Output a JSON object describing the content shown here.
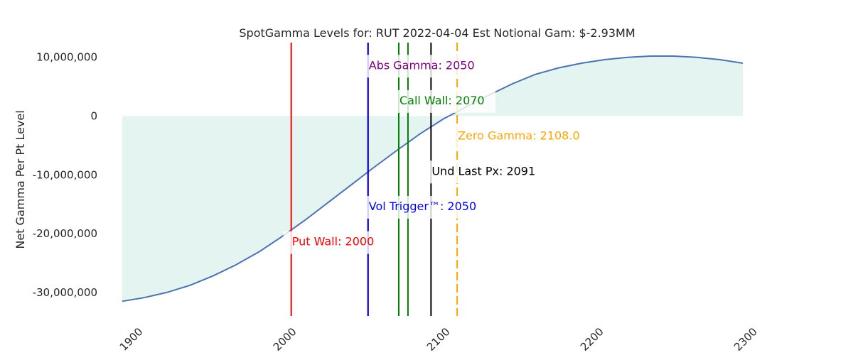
{
  "chart_data": {
    "type": "line",
    "title": "SpotGamma Levels for: RUT  2022-04-04 Est Notional Gam: $-2.93MM",
    "xlabel": "",
    "ylabel": "Net Gamma Per Pt Level",
    "xlim": [
      1890,
      2300
    ],
    "ylim": [
      -34000000,
      12500000
    ],
    "xticks": [
      1900,
      2000,
      2100,
      2200,
      2300
    ],
    "xtick_labels": [
      "1900",
      "2000",
      "2100",
      "2200",
      "2300"
    ],
    "yticks": [
      10000000,
      0,
      -10000000,
      -20000000,
      -30000000
    ],
    "ytick_labels": [
      "10,000,000",
      "0",
      "-10,000,000",
      "-20,000,000",
      "-30,000,000"
    ],
    "grid": false,
    "fill_color": "#e4f4f1",
    "line_color": "#4c72b0",
    "series": [
      {
        "x": [
          1890,
          1904,
          1919,
          1934,
          1949,
          1964,
          1979,
          1994,
          2009,
          2024,
          2039,
          2054,
          2069,
          2084,
          2099,
          2114,
          2129,
          2144,
          2159,
          2174,
          2189,
          2204,
          2219,
          2234,
          2249,
          2264,
          2279,
          2294
        ],
        "values": [
          -31500000,
          -30900000,
          -30000000,
          -28800000,
          -27200000,
          -25300000,
          -23100000,
          -20500000,
          -17700000,
          -14700000,
          -11700000,
          -8700000,
          -5800000,
          -3000000,
          -500000,
          1600000,
          3600000,
          5500000,
          7100000,
          8200000,
          9000000,
          9600000,
          10000000,
          10200000,
          10200000,
          10000000,
          9600000,
          9000000
        ]
      }
    ],
    "levels": [
      {
        "name": "Put Wall",
        "text": "Put Wall: 2000",
        "x": 2000,
        "y_text": -22000000,
        "color": "#ff0000",
        "dashed": false
      },
      {
        "name": "Abs Gamma",
        "text": "Abs Gamma: 2050",
        "x": 2050,
        "y_text": 8000000,
        "color": "#800080",
        "dashed": false
      },
      {
        "name": "Call Wall",
        "text": "Call Wall: 2070",
        "x": 2070,
        "y_text": 2000000,
        "color": "#008000",
        "dashed": false
      },
      {
        "name": "Call Wall 2",
        "text": "",
        "x": 2076,
        "y_text": 0,
        "color": "#008000",
        "dashed": false
      },
      {
        "name": "Zero Gamma",
        "text": "Zero Gamma: 2108.0",
        "x": 2108,
        "y_text": -4000000,
        "color": "#ffa500",
        "dashed": true
      },
      {
        "name": "Und Last Px",
        "text": "Und Last Px: 2091",
        "x": 2091,
        "y_text": -10000000,
        "color": "#000000",
        "dashed": false
      },
      {
        "name": "Vol Trigger",
        "text": "Vol Trigger™: 2050",
        "x": 2050,
        "y_text": -16000000,
        "color": "#0000ff",
        "dashed": false
      }
    ]
  }
}
